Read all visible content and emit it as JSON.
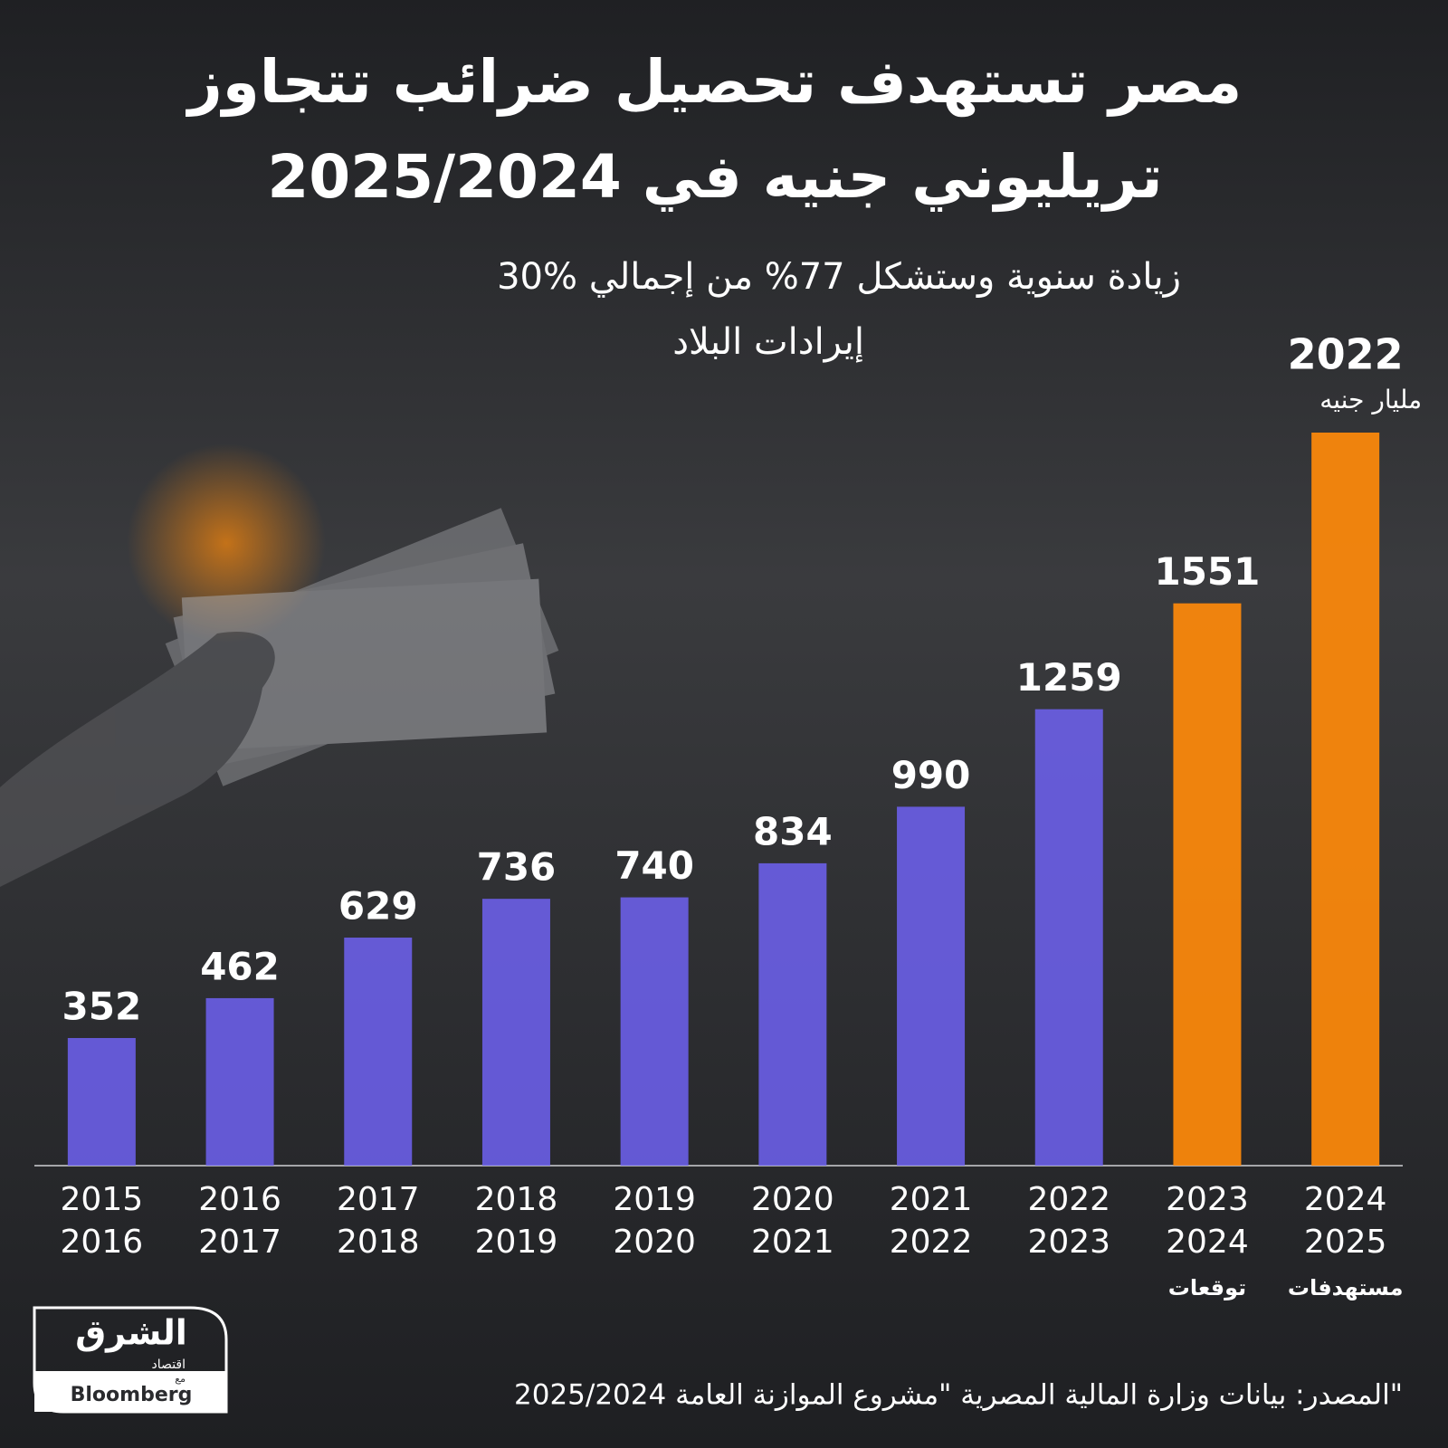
{
  "header": {
    "title_lines": [
      "مصر تستهدف تحصيل ضرائب تتجاوز",
      "تريليوني جنيه في 2025/2024"
    ],
    "subtitle_lines": [
      "30% زيادة سنوية وستشكل 77% من إجمالي",
      "إيرادات البلاد"
    ]
  },
  "chart_data": {
    "type": "bar",
    "categories": [
      [
        "2015",
        "2016"
      ],
      [
        "2016",
        "2017"
      ],
      [
        "2017",
        "2018"
      ],
      [
        "2018",
        "2019"
      ],
      [
        "2019",
        "2020"
      ],
      [
        "2020",
        "2021"
      ],
      [
        "2021",
        "2022"
      ],
      [
        "2022",
        "2023"
      ],
      [
        "2023",
        "2024"
      ],
      [
        "2024",
        "2025"
      ]
    ],
    "values": [
      352,
      462,
      629,
      736,
      740,
      834,
      990,
      1259,
      1551,
      2022
    ],
    "colors": [
      "#6f62f2",
      "#6f62f2",
      "#6f62f2",
      "#6f62f2",
      "#6f62f2",
      "#6f62f2",
      "#6f62f2",
      "#6f62f2",
      "#ff8a0a",
      "#ff8a0a"
    ],
    "category_notes": [
      null,
      null,
      null,
      null,
      null,
      null,
      null,
      null,
      "توقعات",
      "مستهدفات"
    ],
    "unit": "مليار جنيه"
  },
  "footer": {
    "source": "المصدر: بيانات وزارة المالية المصرية \"مشروع الموازنة العامة 2025/2024\"",
    "logo": {
      "name": "الشرق",
      "sub": "اقتصاد",
      "with": "مع",
      "partner": "Bloomberg"
    }
  }
}
